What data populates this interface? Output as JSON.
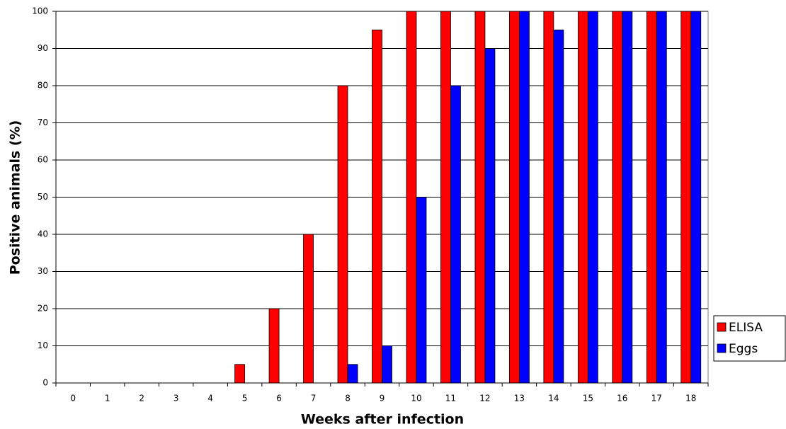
{
  "chart_data": {
    "type": "bar",
    "x_label": "Weeks after infection",
    "y_label": "Positive animals (%)",
    "categories": [
      "0",
      "1",
      "2",
      "3",
      "4",
      "5",
      "6",
      "7",
      "8",
      "9",
      "10",
      "11",
      "12",
      "13",
      "14",
      "15",
      "16",
      "17",
      "18"
    ],
    "series": [
      {
        "name": "ELISA",
        "color": "#ff0000",
        "values": [
          0,
          0,
          0,
          0,
          0,
          5,
          20,
          40,
          80,
          95,
          100,
          100,
          100,
          100,
          100,
          100,
          100,
          100,
          100
        ]
      },
      {
        "name": "Eggs",
        "color": "#0000ff",
        "values": [
          0,
          0,
          0,
          0,
          0,
          0,
          0,
          0,
          5,
          10,
          50,
          80,
          90,
          100,
          95,
          100,
          100,
          100,
          100
        ]
      }
    ],
    "ylim": [
      0,
      100
    ],
    "yticks": [
      0,
      10,
      20,
      30,
      40,
      50,
      60,
      70,
      80,
      90,
      100
    ],
    "grid": true,
    "legend": "right"
  }
}
